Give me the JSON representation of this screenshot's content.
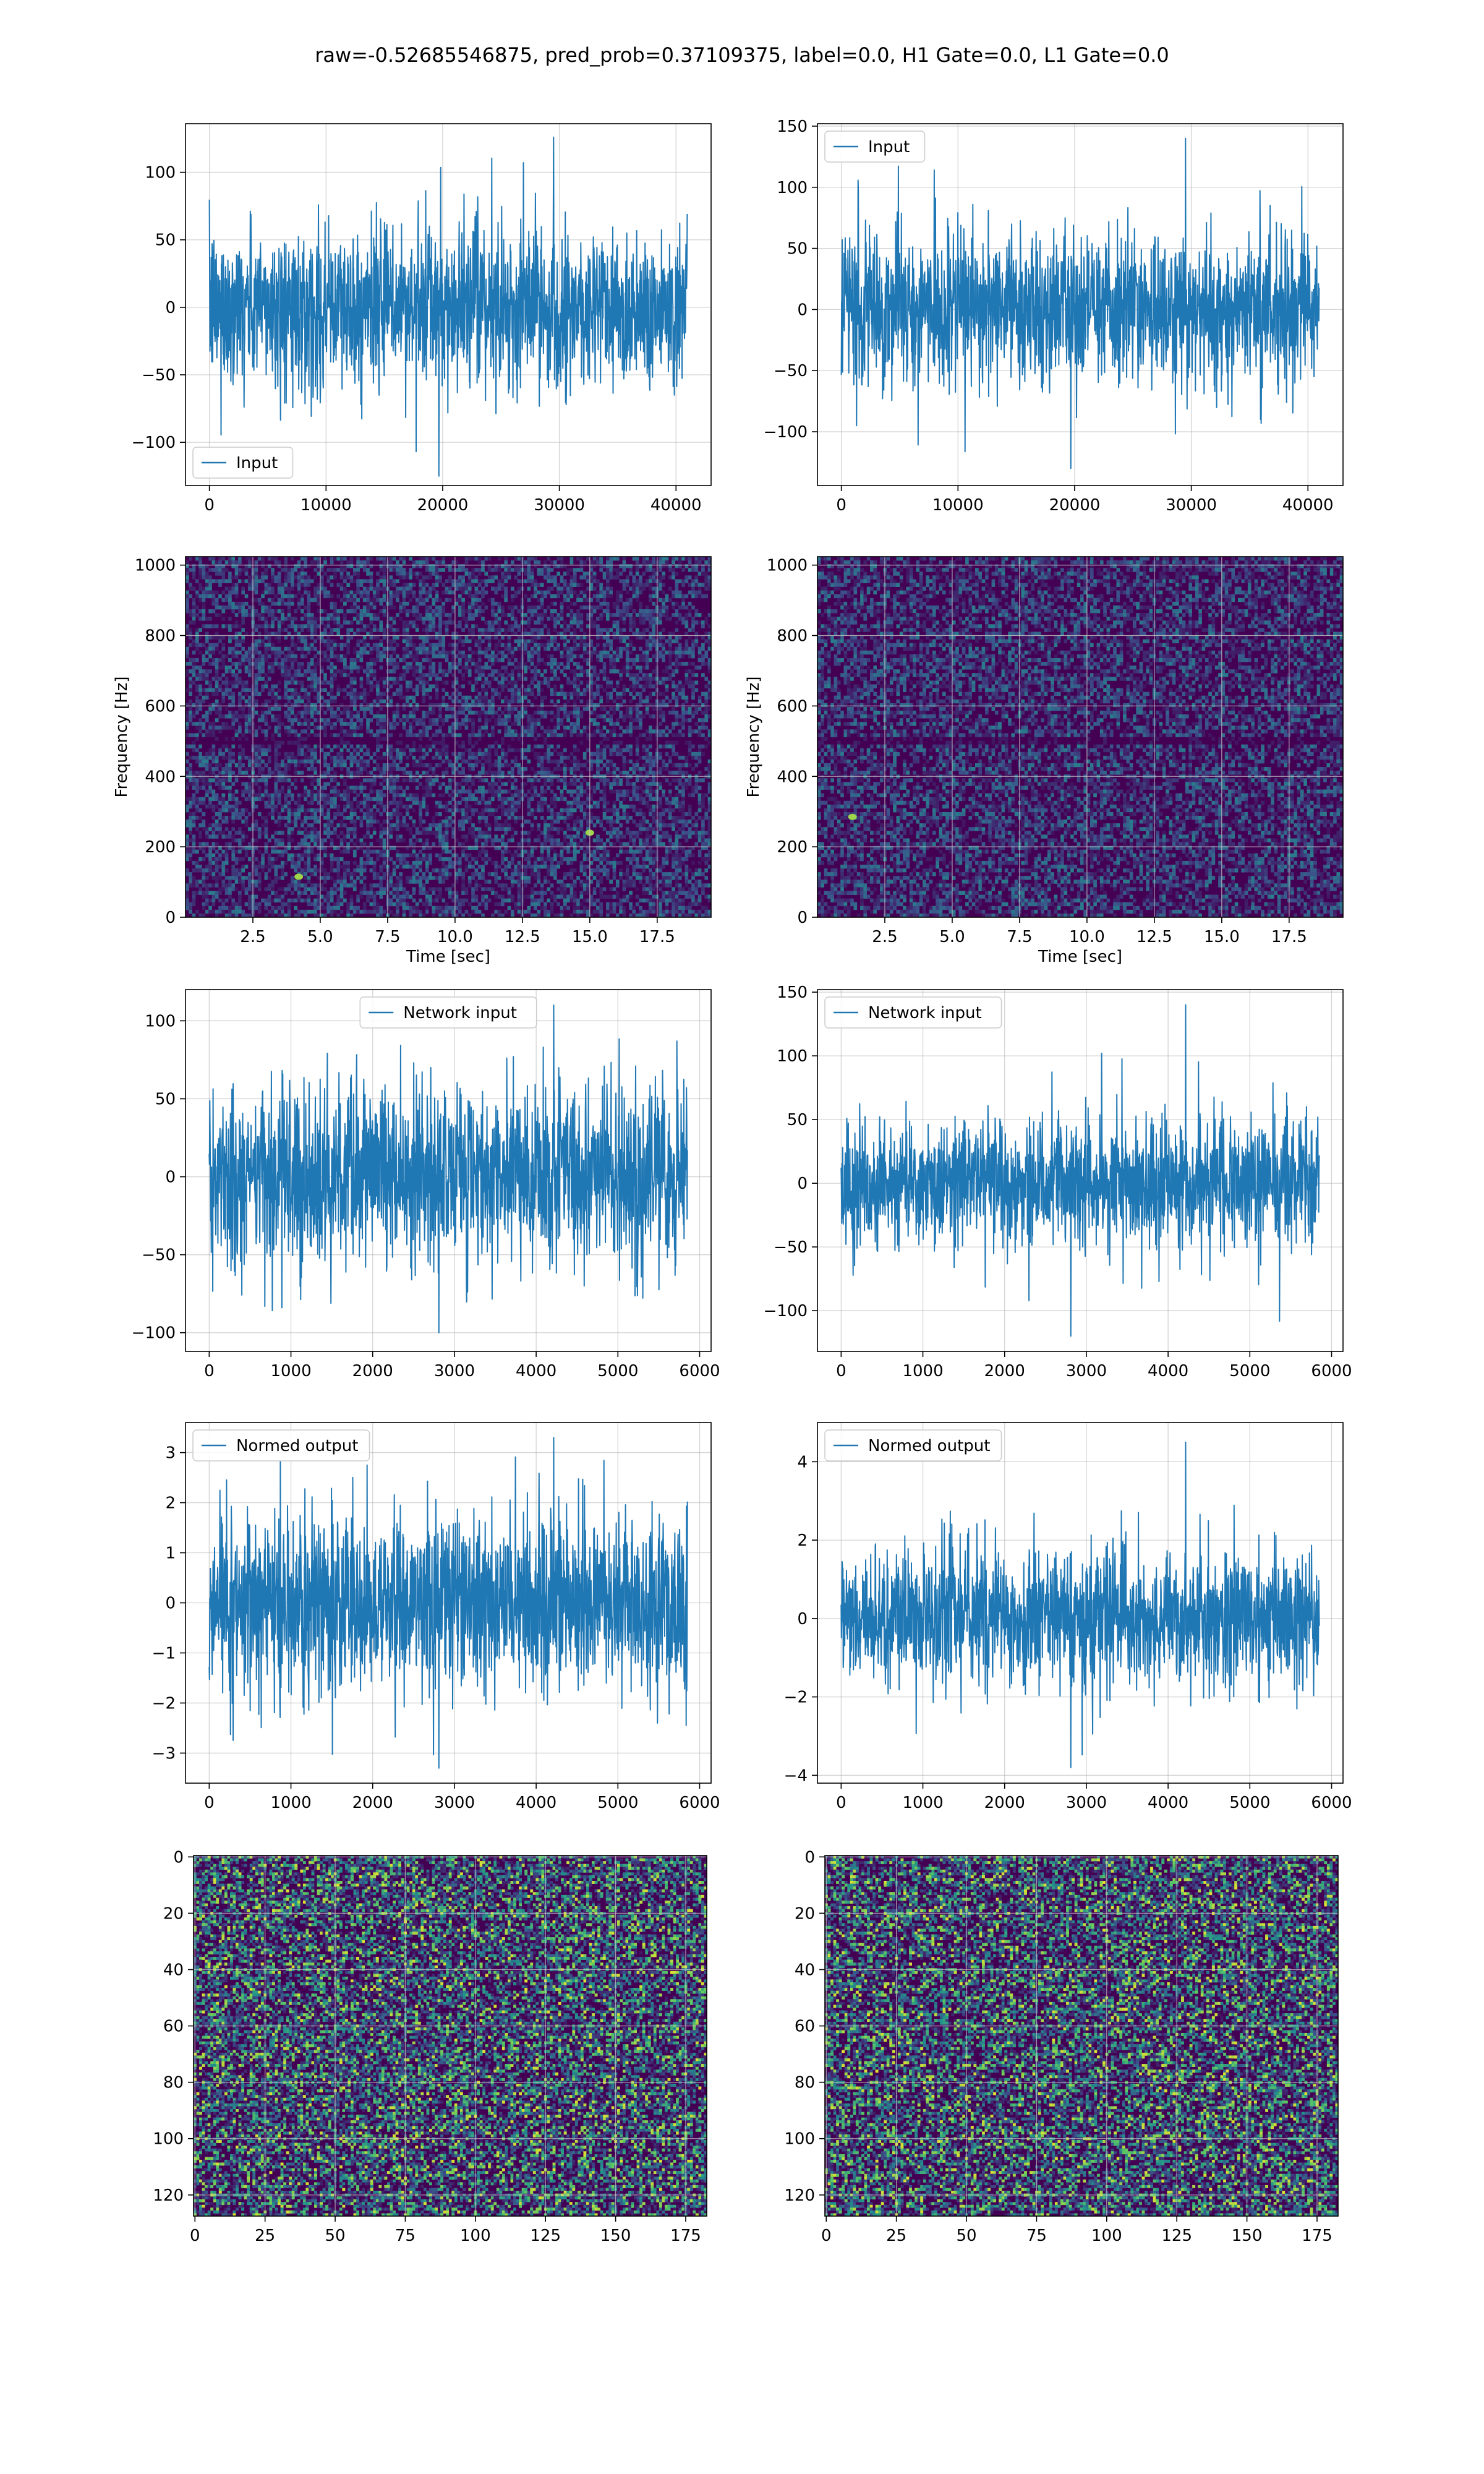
{
  "figure": {
    "title": "raw=-0.52685546875, pred_prob=0.37109375, label=0.0, H1 Gate=0.0, L1 Gate=0.0"
  },
  "colors": {
    "line": "#1f77b4",
    "grid": "#b0b0b0",
    "viridis_dark": "#440154"
  },
  "chart_data": [
    {
      "id": "input-h1",
      "type": "line",
      "x_range": [
        0,
        40960
      ],
      "xlim": [
        -2048,
        43008
      ],
      "ylim": [
        -132,
        136
      ],
      "xticks": [
        0,
        10000,
        20000,
        30000,
        40000
      ],
      "yticks": [
        -100,
        -50,
        0,
        50,
        100
      ],
      "series": [
        {
          "name": "Input",
          "amplitude": 25,
          "peak_max": 126,
          "peak_min": -125
        }
      ],
      "legend": "lower-left",
      "grid": true
    },
    {
      "id": "input-l1",
      "type": "line",
      "x_range": [
        0,
        40960
      ],
      "xlim": [
        -2048,
        43008
      ],
      "ylim": [
        -144,
        152
      ],
      "xticks": [
        0,
        10000,
        20000,
        30000,
        40000
      ],
      "yticks": [
        -100,
        -50,
        0,
        50,
        100,
        150
      ],
      "series": [
        {
          "name": "Input",
          "amplitude": 26,
          "peak_max": 140,
          "peak_min": -130
        }
      ],
      "legend": "upper-left",
      "grid": true
    },
    {
      "id": "spectrogram-h1",
      "type": "heatmap",
      "xlim": [
        0,
        19.5
      ],
      "ylim": [
        0,
        1024
      ],
      "xticks": [
        2.5,
        5.0,
        7.5,
        10.0,
        12.5,
        15.0,
        17.5
      ],
      "yticks": [
        0,
        200,
        400,
        600,
        800,
        1000
      ],
      "xlabel": "Time [sec]",
      "ylabel": "Frequency [Hz]",
      "colormap": "viridis",
      "grid": true,
      "hot_spots": [
        [
          4.2,
          115
        ],
        [
          15.0,
          240
        ]
      ],
      "dark_band_hz": 500
    },
    {
      "id": "spectrogram-l1",
      "type": "heatmap",
      "xlim": [
        0,
        19.5
      ],
      "ylim": [
        0,
        1024
      ],
      "xticks": [
        2.5,
        5.0,
        7.5,
        10.0,
        12.5,
        15.0,
        17.5
      ],
      "yticks": [
        0,
        200,
        400,
        600,
        800,
        1000
      ],
      "xlabel": "Time [sec]",
      "ylabel": "Frequency [Hz]",
      "colormap": "viridis",
      "grid": true,
      "hot_spots": [
        [
          1.3,
          285
        ]
      ],
      "dark_band_hz": 500
    },
    {
      "id": "network-input-h1",
      "type": "line",
      "x_range": [
        0,
        5850
      ],
      "xlim": [
        -290,
        6140
      ],
      "ylim": [
        -112,
        120
      ],
      "xticks": [
        0,
        1000,
        2000,
        3000,
        4000,
        5000,
        6000
      ],
      "yticks": [
        -100,
        -50,
        0,
        50,
        100
      ],
      "series": [
        {
          "name": "Network input",
          "amplitude": 24,
          "peak_max": 110,
          "peak_min": -100
        }
      ],
      "legend": "upper-center",
      "grid": true
    },
    {
      "id": "network-input-l1",
      "type": "line",
      "x_range": [
        0,
        5850
      ],
      "xlim": [
        -290,
        6140
      ],
      "ylim": [
        -132,
        152
      ],
      "xticks": [
        0,
        1000,
        2000,
        3000,
        4000,
        5000,
        6000
      ],
      "yticks": [
        -100,
        -50,
        0,
        50,
        100,
        150
      ],
      "series": [
        {
          "name": "Network input",
          "amplitude": 22,
          "peak_max": 140,
          "peak_min": -120
        }
      ],
      "legend": "upper-left",
      "grid": true
    },
    {
      "id": "normed-output-h1",
      "type": "line",
      "x_range": [
        0,
        5850
      ],
      "xlim": [
        -290,
        6140
      ],
      "ylim": [
        -3.6,
        3.6
      ],
      "xticks": [
        0,
        1000,
        2000,
        3000,
        4000,
        5000,
        6000
      ],
      "yticks": [
        -3,
        -2,
        -1,
        0,
        1,
        2,
        3
      ],
      "series": [
        {
          "name": "Normed output",
          "amplitude": 0.75,
          "peak_max": 3.3,
          "peak_min": -3.3
        }
      ],
      "legend": "upper-left",
      "grid": true
    },
    {
      "id": "normed-output-l1",
      "type": "line",
      "x_range": [
        0,
        5850
      ],
      "xlim": [
        -290,
        6140
      ],
      "ylim": [
        -4.2,
        5.0
      ],
      "xticks": [
        0,
        1000,
        2000,
        3000,
        4000,
        5000,
        6000
      ],
      "yticks": [
        -4,
        -2,
        0,
        2,
        4
      ],
      "series": [
        {
          "name": "Normed output",
          "amplitude": 0.72,
          "peak_max": 4.5,
          "peak_min": -3.8
        }
      ],
      "legend": "upper-left",
      "grid": true
    },
    {
      "id": "image-h1",
      "type": "heatmap",
      "shape": [
        128,
        183
      ],
      "xlim": [
        -0.5,
        182.5
      ],
      "ylim": [
        127.5,
        -0.5
      ],
      "xticks": [
        0,
        25,
        50,
        75,
        100,
        125,
        150,
        175
      ],
      "yticks": [
        0,
        20,
        40,
        60,
        80,
        100,
        120
      ],
      "colormap": "viridis",
      "grid": true
    },
    {
      "id": "image-l1",
      "type": "heatmap",
      "shape": [
        128,
        183
      ],
      "xlim": [
        -0.5,
        182.5
      ],
      "ylim": [
        127.5,
        -0.5
      ],
      "xticks": [
        0,
        25,
        50,
        75,
        100,
        125,
        150,
        175
      ],
      "yticks": [
        0,
        20,
        40,
        60,
        80,
        100,
        120
      ],
      "colormap": "viridis",
      "grid": true
    }
  ]
}
